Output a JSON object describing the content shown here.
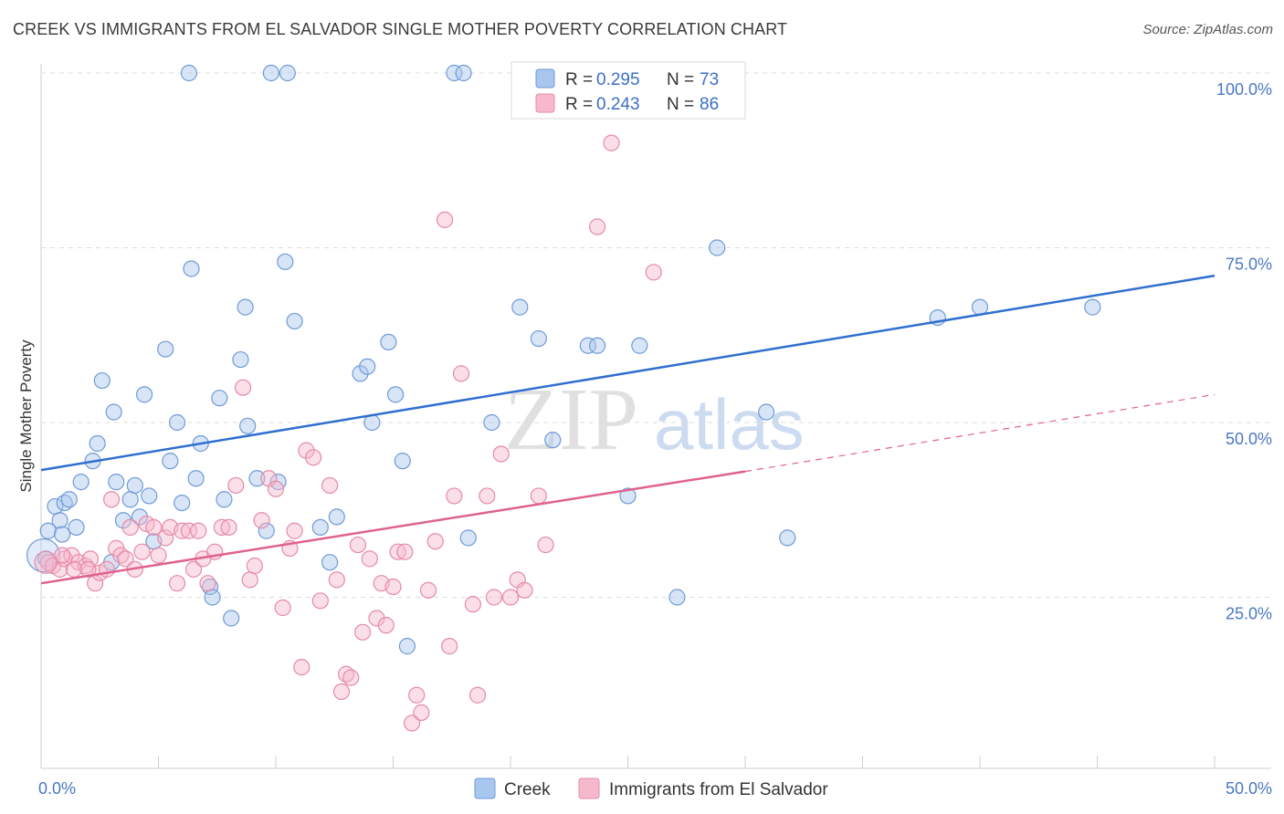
{
  "header": {
    "title": "CREEK VS IMMIGRANTS FROM EL SALVADOR SINGLE MOTHER POVERTY CORRELATION CHART",
    "source": "Source: ZipAtlas.com"
  },
  "watermark": {
    "zip": "ZIP",
    "atlas": "atlas"
  },
  "colors": {
    "creek_fill": "#a9c6ee",
    "creek_stroke": "#6f9ad6",
    "creek_line": "#2f6fcf",
    "salv_fill": "#f6b9cc",
    "salv_stroke": "#e58aa8",
    "salv_line": "#e0628c",
    "grid": "#dcdcdc",
    "axis_text": "#4a78c2"
  },
  "legend": {
    "rows": [
      {
        "r_label": "R = ",
        "r_value": "0.295",
        "n_label": "N = ",
        "n_value": "73"
      },
      {
        "r_label": "R = ",
        "r_value": "0.243",
        "n_label": "N = ",
        "n_value": "86"
      }
    ]
  },
  "chart_data": {
    "type": "scatter",
    "title": "CREEK VS IMMIGRANTS FROM EL SALVADOR SINGLE MOTHER POVERTY CORRELATION CHART",
    "xlabel": "",
    "ylabel": "Single Mother Poverty",
    "xlim": [
      0,
      50
    ],
    "ylim": [
      0,
      105
    ],
    "x_tick_labels": [
      "0.0%",
      "50.0%"
    ],
    "y_ticks": [
      25,
      50,
      75,
      100
    ],
    "y_tick_labels": [
      "25.0%",
      "50.0%",
      "75.0%",
      "100.0%"
    ],
    "grid": true,
    "series": [
      {
        "name": "Creek",
        "R": 0.295,
        "N": 73,
        "trend": {
          "x": [
            0,
            50
          ],
          "y": [
            43.2,
            71.0
          ],
          "dashed_to": null
        },
        "points": [
          [
            0.2,
            30.5
          ],
          [
            0.3,
            34.5
          ],
          [
            0.6,
            38
          ],
          [
            0.8,
            36
          ],
          [
            1.0,
            38.5
          ],
          [
            1.2,
            39
          ],
          [
            1.5,
            35
          ],
          [
            1.7,
            41.5
          ],
          [
            2.2,
            44.5
          ],
          [
            2.4,
            47
          ],
          [
            2.6,
            56
          ],
          [
            3.1,
            51.5
          ],
          [
            3.2,
            41.5
          ],
          [
            3.5,
            36
          ],
          [
            3.8,
            39
          ],
          [
            4.0,
            41
          ],
          [
            4.2,
            36.5
          ],
          [
            4.4,
            54
          ],
          [
            4.6,
            39.5
          ],
          [
            4.8,
            33
          ],
          [
            5.3,
            60.5
          ],
          [
            5.5,
            44.5
          ],
          [
            5.8,
            50
          ],
          [
            6.0,
            38.5
          ],
          [
            6.3,
            100
          ],
          [
            6.4,
            72
          ],
          [
            6.6,
            42
          ],
          [
            6.8,
            47
          ],
          [
            7.2,
            26.5
          ],
          [
            7.3,
            25
          ],
          [
            7.6,
            53.5
          ],
          [
            7.8,
            39
          ],
          [
            8.1,
            22
          ],
          [
            8.5,
            59
          ],
          [
            8.7,
            66.5
          ],
          [
            8.8,
            49.5
          ],
          [
            9.2,
            42
          ],
          [
            9.6,
            34.5
          ],
          [
            9.8,
            100
          ],
          [
            10.1,
            41.5
          ],
          [
            10.4,
            73
          ],
          [
            10.5,
            100
          ],
          [
            10.8,
            64.5
          ],
          [
            11.9,
            35
          ],
          [
            12.3,
            30
          ],
          [
            12.6,
            36.5
          ],
          [
            13.6,
            57
          ],
          [
            13.9,
            58
          ],
          [
            14.1,
            50
          ],
          [
            14.8,
            61.5
          ],
          [
            15.1,
            54
          ],
          [
            15.4,
            44.5
          ],
          [
            15.6,
            18
          ],
          [
            17.6,
            100
          ],
          [
            18.0,
            100
          ],
          [
            18.2,
            33.5
          ],
          [
            19.2,
            50
          ],
          [
            20.4,
            66.5
          ],
          [
            21.2,
            62
          ],
          [
            21.8,
            47.5
          ],
          [
            23.3,
            61
          ],
          [
            23.7,
            61
          ],
          [
            25.0,
            39.5
          ],
          [
            25.5,
            61
          ],
          [
            27.1,
            25
          ],
          [
            28.8,
            75
          ],
          [
            30.9,
            51.5
          ],
          [
            31.8,
            33.5
          ],
          [
            38.2,
            65
          ],
          [
            40.0,
            66.5
          ],
          [
            44.8,
            66.5
          ],
          [
            0.9,
            34
          ],
          [
            3.0,
            30
          ]
        ]
      },
      {
        "name": "Immigrants from El Salvador",
        "R": 0.243,
        "N": 86,
        "trend": {
          "x": [
            0,
            30
          ],
          "y": [
            27.0,
            43.0
          ],
          "dashed_to": [
            50,
            54.0
          ]
        },
        "points": [
          [
            0.3,
            30
          ],
          [
            0.5,
            29.5
          ],
          [
            0.8,
            29
          ],
          [
            1.0,
            30.5
          ],
          [
            1.3,
            31
          ],
          [
            1.6,
            30
          ],
          [
            1.9,
            29.5
          ],
          [
            2.1,
            30.5
          ],
          [
            2.3,
            27
          ],
          [
            2.5,
            28.5
          ],
          [
            2.8,
            29
          ],
          [
            3.0,
            39
          ],
          [
            3.2,
            32
          ],
          [
            3.4,
            31
          ],
          [
            3.6,
            30.5
          ],
          [
            3.8,
            35
          ],
          [
            4.0,
            29
          ],
          [
            4.3,
            31.5
          ],
          [
            4.5,
            35.5
          ],
          [
            4.8,
            35
          ],
          [
            5.0,
            31
          ],
          [
            5.3,
            33.5
          ],
          [
            5.5,
            35
          ],
          [
            5.8,
            27
          ],
          [
            6.0,
            34.5
          ],
          [
            6.3,
            34.5
          ],
          [
            6.5,
            29
          ],
          [
            6.7,
            34.5
          ],
          [
            6.9,
            30.5
          ],
          [
            7.1,
            27
          ],
          [
            7.4,
            31.5
          ],
          [
            7.7,
            35
          ],
          [
            8.0,
            35
          ],
          [
            8.3,
            41
          ],
          [
            8.6,
            55
          ],
          [
            8.9,
            27.5
          ],
          [
            9.1,
            29.5
          ],
          [
            9.4,
            36
          ],
          [
            9.7,
            42
          ],
          [
            10.0,
            40.5
          ],
          [
            10.3,
            23.5
          ],
          [
            10.6,
            32
          ],
          [
            10.8,
            34.5
          ],
          [
            11.1,
            15
          ],
          [
            11.3,
            46
          ],
          [
            11.6,
            45
          ],
          [
            11.9,
            24.5
          ],
          [
            12.3,
            41
          ],
          [
            12.6,
            27.5
          ],
          [
            12.8,
            11.5
          ],
          [
            13.0,
            14
          ],
          [
            13.2,
            13.5
          ],
          [
            13.5,
            32.5
          ],
          [
            13.7,
            20
          ],
          [
            14.0,
            30.5
          ],
          [
            14.3,
            22
          ],
          [
            14.5,
            27
          ],
          [
            14.7,
            21
          ],
          [
            15.0,
            26.5
          ],
          [
            15.2,
            31.5
          ],
          [
            15.5,
            31.5
          ],
          [
            15.8,
            7
          ],
          [
            16.0,
            11
          ],
          [
            16.2,
            8.5
          ],
          [
            16.5,
            26
          ],
          [
            16.8,
            33
          ],
          [
            17.2,
            79
          ],
          [
            17.4,
            18
          ],
          [
            17.6,
            39.5
          ],
          [
            17.9,
            57
          ],
          [
            18.4,
            24
          ],
          [
            18.6,
            11
          ],
          [
            19.0,
            39.5
          ],
          [
            19.3,
            25
          ],
          [
            19.6,
            45.5
          ],
          [
            20.0,
            25
          ],
          [
            20.3,
            27.5
          ],
          [
            20.6,
            26
          ],
          [
            21.2,
            39.5
          ],
          [
            21.5,
            32.5
          ],
          [
            23.7,
            78
          ],
          [
            24.3,
            90
          ],
          [
            26.1,
            71.5
          ],
          [
            0.9,
            31
          ],
          [
            2.0,
            29
          ],
          [
            1.4,
            29
          ]
        ]
      }
    ]
  },
  "bottom_legend": {
    "items": [
      "Creek",
      "Immigrants from El Salvador"
    ]
  }
}
